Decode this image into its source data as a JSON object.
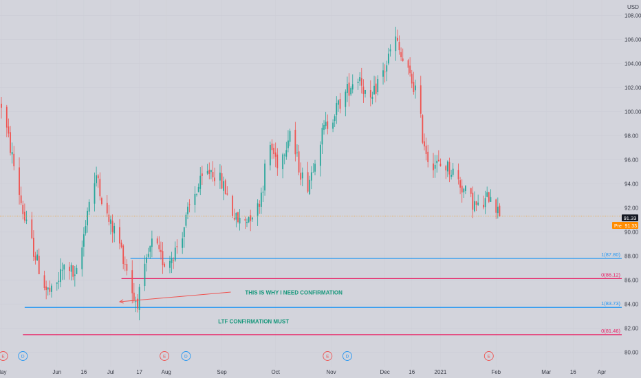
{
  "chart_data": {
    "type": "candlestick",
    "currency": "USD",
    "last_price": "91.33",
    "pre_market": {
      "label": "Pre",
      "value": "91.33"
    },
    "colors": {
      "up": "#26a69a",
      "down": "#ef5350",
      "background": "#d3d4dc",
      "last_price_line": "#f0a030",
      "pre_badge": "#ff8c00",
      "fib_blue": "#2196f3",
      "fib_red": "#e91e63",
      "annotation": "#15967a"
    },
    "ylim": [
      79,
      109
    ],
    "yticks": [
      "80.00",
      "82.00",
      "84.00",
      "86.00",
      "88.00",
      "90.00",
      "92.00",
      "94.00",
      "96.00",
      "98.00",
      "100.00",
      "102.00",
      "104.00",
      "106.00",
      "108.00"
    ],
    "x_range": [
      "2020-05-01",
      "2021-04-06"
    ],
    "xticks": [
      {
        "label": "May",
        "date": "2020-05-01"
      },
      {
        "label": "Jun",
        "date": "2020-06-01"
      },
      {
        "label": "16",
        "date": "2020-06-16"
      },
      {
        "label": "Jul",
        "date": "2020-07-01"
      },
      {
        "label": "17",
        "date": "2020-07-17"
      },
      {
        "label": "Aug",
        "date": "2020-08-01"
      },
      {
        "label": "Sep",
        "date": "2020-09-01"
      },
      {
        "label": "Oct",
        "date": "2020-10-01"
      },
      {
        "label": "Nov",
        "date": "2020-11-01"
      },
      {
        "label": "Dec",
        "date": "2020-12-01"
      },
      {
        "label": "16",
        "date": "2020-12-16"
      },
      {
        "label": "2021",
        "date": "2021-01-01"
      },
      {
        "label": "Feb",
        "date": "2021-02-01"
      },
      {
        "label": "Mar",
        "date": "2021-03-01"
      },
      {
        "label": "16",
        "date": "2021-03-16"
      },
      {
        "label": "Apr",
        "date": "2021-04-01"
      }
    ],
    "price_path": [
      [
        "2020-05-01",
        100.6
      ],
      [
        "2020-05-06",
        97.0
      ],
      [
        "2020-05-10",
        94.0
      ],
      [
        "2020-05-14",
        91.0
      ],
      [
        "2020-05-18",
        89.0
      ],
      [
        "2020-05-22",
        87.0
      ],
      [
        "2020-05-26",
        85.2
      ],
      [
        "2020-05-30",
        84.8
      ],
      [
        "2020-06-03",
        86.5
      ],
      [
        "2020-06-07",
        87.5
      ],
      [
        "2020-06-11",
        86.0
      ],
      [
        "2020-06-14",
        87.5
      ],
      [
        "2020-06-17",
        91.0
      ],
      [
        "2020-06-20",
        93.5
      ],
      [
        "2020-06-24",
        94.5
      ],
      [
        "2020-06-27",
        92.0
      ],
      [
        "2020-07-01",
        90.5
      ],
      [
        "2020-07-04",
        90.0
      ],
      [
        "2020-07-08",
        88.0
      ],
      [
        "2020-07-11",
        86.5
      ],
      [
        "2020-07-14",
        84.5
      ],
      [
        "2020-07-16",
        84.3
      ],
      [
        "2020-07-19",
        86.0
      ],
      [
        "2020-07-22",
        88.0
      ],
      [
        "2020-07-25",
        89.5
      ],
      [
        "2020-07-28",
        88.0
      ],
      [
        "2020-07-31",
        87.5
      ],
      [
        "2020-08-03",
        87.8
      ],
      [
        "2020-08-06",
        88.5
      ],
      [
        "2020-08-09",
        89.5
      ],
      [
        "2020-08-12",
        91.0
      ],
      [
        "2020-08-15",
        92.5
      ],
      [
        "2020-08-18",
        93.5
      ],
      [
        "2020-08-22",
        94.5
      ],
      [
        "2020-08-26",
        95.2
      ],
      [
        "2020-08-30",
        94.5
      ],
      [
        "2020-09-03",
        93.5
      ],
      [
        "2020-09-06",
        92.0
      ],
      [
        "2020-09-09",
        91.0
      ],
      [
        "2020-09-13",
        90.8
      ],
      [
        "2020-09-17",
        91.5
      ],
      [
        "2020-09-21",
        92.0
      ],
      [
        "2020-09-24",
        94.0
      ],
      [
        "2020-09-27",
        97.5
      ],
      [
        "2020-09-30",
        96.5
      ],
      [
        "2020-10-03",
        95.5
      ],
      [
        "2020-10-06",
        97.0
      ],
      [
        "2020-10-09",
        98.5
      ],
      [
        "2020-10-12",
        96.5
      ],
      [
        "2020-10-15",
        95.0
      ],
      [
        "2020-10-18",
        93.5
      ],
      [
        "2020-10-21",
        95.0
      ],
      [
        "2020-10-24",
        97.0
      ],
      [
        "2020-10-28",
        98.5
      ],
      [
        "2020-11-01",
        99.5
      ],
      [
        "2020-11-05",
        100.5
      ],
      [
        "2020-11-09",
        101.5
      ],
      [
        "2020-11-13",
        102.5
      ],
      [
        "2020-11-17",
        103.0
      ],
      [
        "2020-11-20",
        101.5
      ],
      [
        "2020-11-23",
        100.5
      ],
      [
        "2020-11-27",
        102.5
      ],
      [
        "2020-12-01",
        103.5
      ],
      [
        "2020-12-04",
        105.0
      ],
      [
        "2020-12-07",
        106.0
      ],
      [
        "2020-12-10",
        104.5
      ],
      [
        "2020-12-13",
        103.5
      ],
      [
        "2020-12-16",
        102.5
      ],
      [
        "2020-12-19",
        101.5
      ],
      [
        "2020-12-22",
        98.0
      ],
      [
        "2020-12-25",
        96.2
      ],
      [
        "2020-12-28",
        95.8
      ],
      [
        "2020-12-31",
        95.5
      ],
      [
        "2021-01-04",
        95.5
      ],
      [
        "2021-01-08",
        95.0
      ],
      [
        "2021-01-12",
        94.0
      ],
      [
        "2021-01-16",
        93.0
      ],
      [
        "2021-01-20",
        92.3
      ],
      [
        "2021-01-23",
        91.8
      ],
      [
        "2021-01-26",
        92.5
      ],
      [
        "2021-01-29",
        93.3
      ],
      [
        "2021-02-01",
        92.2
      ],
      [
        "2021-02-03",
        91.33
      ]
    ],
    "horizontal_levels": [
      {
        "label": "1(87.80)",
        "value": 87.8,
        "color": "#2196f3",
        "from": "2020-07-12"
      },
      {
        "label": "0(86.12)",
        "value": 86.12,
        "color": "#e91e63",
        "from": "2020-07-07"
      },
      {
        "label": "1(83.73)",
        "value": 83.73,
        "color": "#2196f3",
        "from": "2020-05-14"
      },
      {
        "label": "0(81.46)",
        "value": 81.46,
        "color": "#e91e63",
        "from": "2020-05-13"
      }
    ],
    "annotations": [
      {
        "text": "THIS IS WHY I NEED CONFIRMATION",
        "date": "2020-09-14",
        "y": 84.8
      },
      {
        "text": "LTF CONFIRMATION MUST",
        "date": "2020-08-30",
        "y": 82.4
      }
    ],
    "arrow": {
      "from": [
        "2020-09-06",
        85.0
      ],
      "to": [
        "2020-07-06",
        84.2
      ]
    },
    "events": [
      {
        "type": "E",
        "date": "2020-05-02"
      },
      {
        "type": "D",
        "date": "2020-05-13"
      },
      {
        "type": "E",
        "date": "2020-07-31"
      },
      {
        "type": "D",
        "date": "2020-08-12"
      },
      {
        "type": "E",
        "date": "2020-10-30"
      },
      {
        "type": "D",
        "date": "2020-11-10"
      },
      {
        "type": "E",
        "date": "2021-01-28"
      }
    ]
  }
}
